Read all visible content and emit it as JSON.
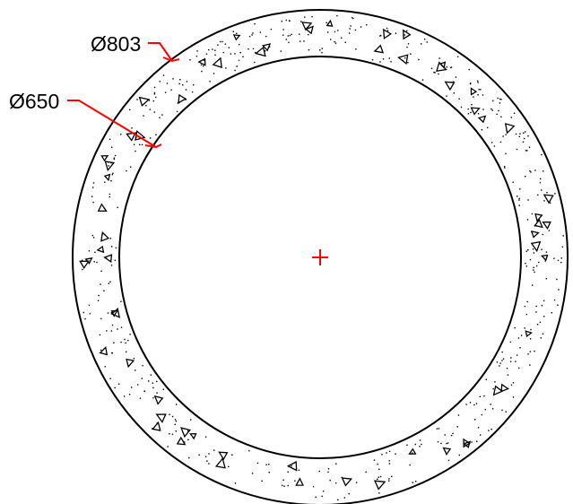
{
  "drawing": {
    "outer_diameter_label": "Ø803",
    "inner_diameter_label": "Ø650",
    "outer_diameter": 803,
    "inner_diameter": 650,
    "colors": {
      "line": "#000000",
      "annotation": "#ff0000",
      "background": "#ffffff"
    },
    "hatch": "concrete-aggregate-pattern",
    "center_mark": "plus-marker"
  }
}
